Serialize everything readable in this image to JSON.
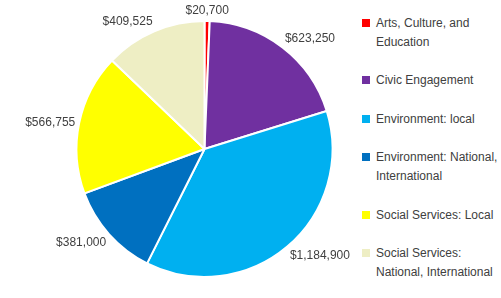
{
  "chart_data": {
    "type": "pie",
    "categories": [
      "Arts, Culture, and Education",
      "Civic Engagement",
      "Environment: local",
      "Environment: National, International",
      "Social Services: Local",
      "Social Services: National, International"
    ],
    "values": [
      20700,
      623250,
      1184900,
      381000,
      566755,
      409525
    ],
    "value_labels": [
      "$20,700",
      "$623,250",
      "$1,184,900",
      "$381,000",
      "$566,755",
      "$409,525"
    ],
    "colors": [
      "#ff0000",
      "#7030a0",
      "#00b0f0",
      "#0070c0",
      "#ffff00",
      "#eeeec4"
    ],
    "data_labels": true,
    "legend": "right"
  }
}
